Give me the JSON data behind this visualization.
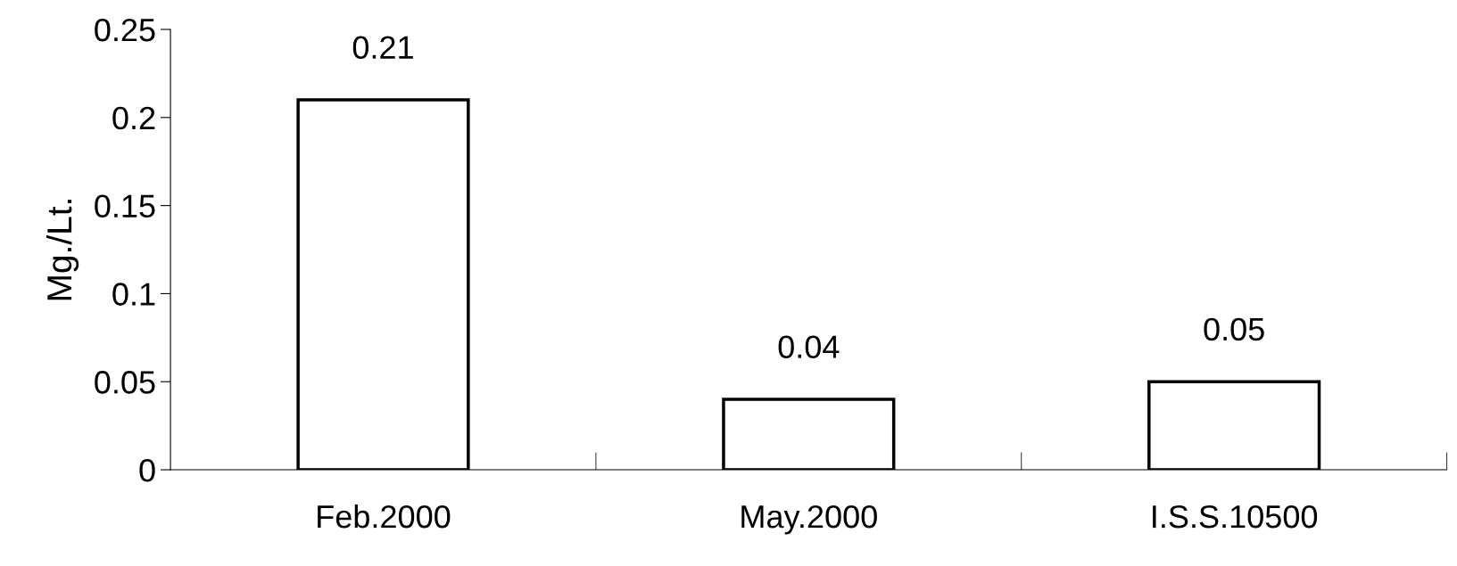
{
  "chart_data": {
    "type": "bar",
    "ylabel": "Mg./Lt.",
    "categories": [
      "Feb.2000",
      "May.2000",
      "I.S.S.10500"
    ],
    "values": [
      0.21,
      0.04,
      0.05
    ],
    "color": "#ffffff",
    "ylim": [
      0,
      0.25
    ],
    "yticks": [
      0,
      0.05,
      0.1,
      0.15,
      0.2,
      0.25
    ],
    "data_labels": true,
    "grid": false,
    "legend": false
  }
}
